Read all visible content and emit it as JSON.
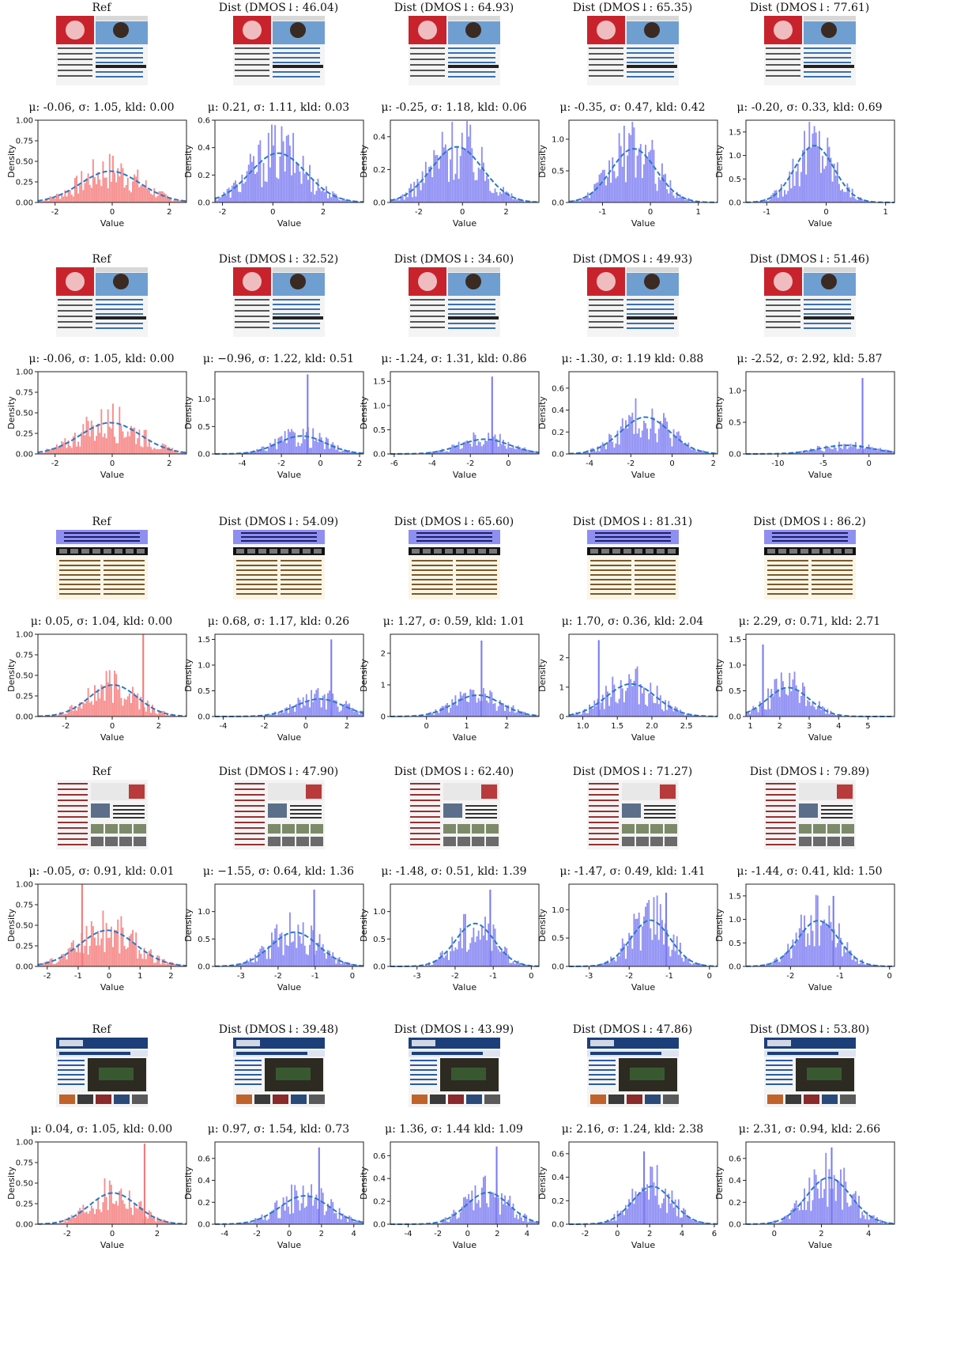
{
  "meta": {
    "figure": "webpage quality distribution grid",
    "thumbnail_variants": [
      "news",
      "news",
      "symposium",
      "article",
      "nbcnews"
    ]
  },
  "palette": {
    "ref_hist": "#f47a7a",
    "dist_hist": "#7b7bf2",
    "fit_line": "#2a78c4",
    "axis": "#222222"
  },
  "chart_data": [
    {
      "row": 0,
      "col": 0,
      "type": "bar",
      "header": "Ref",
      "stats": "μ: -0.06,  σ: 1.05,  kld: 0.00",
      "xlabel": "Value",
      "ylabel": "Density",
      "xlim": [
        -2.6,
        2.6
      ],
      "ylim": [
        0,
        1.0
      ],
      "xticks": [
        -2,
        0,
        2
      ],
      "yticks": [
        0,
        0.25,
        0.5,
        0.75,
        1.0
      ],
      "mu": -0.06,
      "sigma": 1.05,
      "kind": "ref",
      "spike": null
    },
    {
      "row": 0,
      "col": 1,
      "type": "bar",
      "header": "Dist (DMOS↓: 46.04)",
      "stats": "μ: 0.21,  σ: 1.11,  kld: 0.03",
      "xlabel": "Value",
      "ylabel": "Density",
      "xlim": [
        -2.3,
        3.6
      ],
      "ylim": [
        0,
        0.6
      ],
      "xticks": [
        -2,
        0,
        2
      ],
      "yticks": [
        0,
        0.2,
        0.4,
        0.6
      ],
      "mu": 0.21,
      "sigma": 1.11,
      "kind": "dist",
      "spike": null
    },
    {
      "row": 0,
      "col": 2,
      "type": "bar",
      "header": "Dist (DMOS↓: 64.93)",
      "stats": "μ: -0.25,  σ: 1.18,  kld: 0.06",
      "xlabel": "Value",
      "ylabel": "Density",
      "xlim": [
        -3.3,
        3.5
      ],
      "ylim": [
        0,
        0.5
      ],
      "xticks": [
        -2,
        0,
        2
      ],
      "yticks": [
        0,
        0.2,
        0.4
      ],
      "mu": -0.25,
      "sigma": 1.18,
      "kind": "dist",
      "spike": null
    },
    {
      "row": 0,
      "col": 3,
      "type": "bar",
      "header": "Dist (DMOS↓: 65.35)",
      "stats": "μ: -0.35,  σ: 0.47,  kld: 0.42",
      "xlabel": "Value",
      "ylabel": "Density",
      "xlim": [
        -1.7,
        1.4
      ],
      "ylim": [
        0,
        1.3
      ],
      "xticks": [
        -1,
        0,
        1
      ],
      "yticks": [
        0,
        0.5,
        1.0
      ],
      "mu": -0.35,
      "sigma": 0.47,
      "kind": "dist",
      "spike": null
    },
    {
      "row": 0,
      "col": 4,
      "type": "bar",
      "header": "Dist (DMOS↓: 77.61)",
      "stats": "μ: -0.20,  σ: 0.33,  kld: 0.69",
      "xlabel": "Value",
      "ylabel": "Density",
      "xlim": [
        -1.35,
        1.15
      ],
      "ylim": [
        0,
        1.75
      ],
      "xticks": [
        -1,
        0,
        1
      ],
      "yticks": [
        0,
        0.5,
        1.0,
        1.5
      ],
      "mu": -0.2,
      "sigma": 0.33,
      "kind": "dist",
      "spike": null
    },
    {
      "row": 1,
      "col": 0,
      "type": "bar",
      "header": "Ref",
      "stats": "μ: -0.06,  σ: 1.05,  kld: 0.00",
      "xlabel": "Value",
      "ylabel": "Density",
      "xlim": [
        -2.6,
        2.6
      ],
      "ylim": [
        0,
        1.0
      ],
      "xticks": [
        -2,
        0,
        2
      ],
      "yticks": [
        0,
        0.25,
        0.5,
        0.75,
        1.0
      ],
      "mu": -0.06,
      "sigma": 1.05,
      "kind": "ref",
      "spike": null
    },
    {
      "row": 1,
      "col": 1,
      "type": "bar",
      "header": "Dist (DMOS↓: 32.52)",
      "stats": "μ: −0.96,  σ: 1.22,  kld: 0.51",
      "xlabel": "Value",
      "ylabel": "Density",
      "xlim": [
        -5.4,
        2.2
      ],
      "ylim": [
        0,
        1.5
      ],
      "xticks": [
        -4,
        -2,
        0,
        2
      ],
      "yticks": [
        0,
        0.5,
        1.0
      ],
      "mu": -0.96,
      "sigma": 1.22,
      "kind": "dist",
      "spike": [
        -0.7,
        1.45
      ]
    },
    {
      "row": 1,
      "col": 2,
      "type": "bar",
      "header": "Dist (DMOS↓: 34.60)",
      "stats": "μ: -1.24,  σ: 1.31,  kld: 0.86",
      "xlabel": "Value",
      "ylabel": "Density",
      "xlim": [
        -6.2,
        1.6
      ],
      "ylim": [
        0,
        1.7
      ],
      "xticks": [
        -6,
        -4,
        -2,
        0
      ],
      "yticks": [
        0,
        0.5,
        1.0,
        1.5
      ],
      "mu": -1.24,
      "sigma": 1.31,
      "kind": "dist",
      "spike": [
        -0.9,
        1.6
      ]
    },
    {
      "row": 1,
      "col": 3,
      "type": "bar",
      "header": "Dist (DMOS↓: 49.93)",
      "stats": "μ: -1.30,  σ: 1.19  kld: 0.88",
      "xlabel": "Value",
      "ylabel": "Density",
      "xlim": [
        -5.0,
        2.2
      ],
      "ylim": [
        0,
        0.75
      ],
      "xticks": [
        -4,
        -2,
        0,
        2
      ],
      "yticks": [
        0,
        0.2,
        0.4,
        0.6
      ],
      "mu": -1.3,
      "sigma": 1.19,
      "kind": "dist",
      "spike": null
    },
    {
      "row": 1,
      "col": 4,
      "type": "bar",
      "header": "Dist (DMOS↓: 51.46)",
      "stats": "μ: -2.52,  σ: 2.92,  kld: 5.87",
      "xlabel": "Value",
      "ylabel": "Density",
      "xlim": [
        -13.5,
        2.8
      ],
      "ylim": [
        0,
        1.3
      ],
      "xticks": [
        -10,
        -5,
        0
      ],
      "yticks": [
        0,
        0.5,
        1.0
      ],
      "mu": -2.52,
      "sigma": 2.92,
      "kind": "dist",
      "spike": [
        -0.8,
        1.2
      ]
    },
    {
      "row": 2,
      "col": 0,
      "type": "bar",
      "header": "Ref",
      "stats": "μ: 0.05,  σ: 1.04,  kld: 0.00",
      "xlabel": "Value",
      "ylabel": "Density",
      "xlim": [
        -3.2,
        3.2
      ],
      "ylim": [
        0,
        1.0
      ],
      "xticks": [
        -2,
        0,
        2
      ],
      "yticks": [
        0,
        0.25,
        0.5,
        0.75,
        1.0
      ],
      "mu": 0.05,
      "sigma": 1.04,
      "kind": "ref",
      "spike": [
        1.3,
        1.0
      ]
    },
    {
      "row": 2,
      "col": 1,
      "type": "bar",
      "header": "Dist (DMOS↓: 54.09)",
      "stats": "μ: 0.68,  σ: 1.17,  kld: 0.26",
      "xlabel": "Value",
      "ylabel": "Density",
      "xlim": [
        -4.4,
        2.8
      ],
      "ylim": [
        0,
        1.6
      ],
      "xticks": [
        -4,
        -2,
        0,
        2
      ],
      "yticks": [
        0,
        0.5,
        1.0,
        1.5
      ],
      "mu": 0.68,
      "sigma": 1.17,
      "kind": "dist",
      "spike": [
        1.2,
        1.5
      ]
    },
    {
      "row": 2,
      "col": 2,
      "type": "bar",
      "header": "Dist (DMOS↓: 65.60)",
      "stats": "μ: 1.27,  σ: 0.59,  kld: 1.01",
      "xlabel": "Value",
      "ylabel": "Density",
      "xlim": [
        -0.9,
        2.8
      ],
      "ylim": [
        0,
        2.6
      ],
      "xticks": [
        0,
        1,
        2
      ],
      "yticks": [
        0,
        1,
        2
      ],
      "mu": 1.27,
      "sigma": 0.59,
      "kind": "dist",
      "spike": [
        1.35,
        2.4
      ]
    },
    {
      "row": 2,
      "col": 3,
      "type": "bar",
      "header": "Dist (DMOS↓: 81.31)",
      "stats": "μ: 1.70,  σ: 0.36,  kld: 2.04",
      "xlabel": "Value",
      "ylabel": "Density",
      "xlim": [
        0.8,
        2.95
      ],
      "ylim": [
        0,
        2.8
      ],
      "xticks": [
        1.0,
        1.5,
        2.0,
        2.5
      ],
      "yticks": [
        0,
        1,
        2
      ],
      "mu": 1.7,
      "sigma": 0.36,
      "kind": "dist",
      "spike": [
        1.22,
        2.6
      ]
    },
    {
      "row": 2,
      "col": 4,
      "type": "bar",
      "header": "Dist (DMOS↓: 86.2)",
      "stats": "μ: 2.29,  σ: 0.71,  kld: 2.71",
      "xlabel": "Value",
      "ylabel": "Density",
      "xlim": [
        0.85,
        5.9
      ],
      "ylim": [
        0,
        1.6
      ],
      "xticks": [
        1,
        2,
        3,
        4,
        5
      ],
      "yticks": [
        0,
        0.5,
        1.0,
        1.5
      ],
      "mu": 2.29,
      "sigma": 0.71,
      "kind": "dist",
      "spike": [
        1.4,
        1.4
      ]
    },
    {
      "row": 3,
      "col": 0,
      "type": "bar",
      "header": "Ref",
      "stats": "μ: -0.05,  σ: 0.91,  kld: 0.01",
      "xlabel": "Value",
      "ylabel": "Density",
      "xlim": [
        -2.3,
        2.5
      ],
      "ylim": [
        0,
        1.0
      ],
      "xticks": [
        -2,
        -1,
        0,
        1,
        2
      ],
      "yticks": [
        0,
        0.25,
        0.5,
        0.75,
        1.0
      ],
      "mu": -0.05,
      "sigma": 0.91,
      "kind": "ref",
      "spike": [
        -0.9,
        1.0
      ]
    },
    {
      "row": 3,
      "col": 1,
      "type": "bar",
      "header": "Dist (DMOS↓: 47.90)",
      "stats": "μ: −1.55,  σ: 0.64,  kld: 1.36",
      "xlabel": "Value",
      "ylabel": "Density",
      "xlim": [
        -3.7,
        0.3
      ],
      "ylim": [
        0,
        1.5
      ],
      "xticks": [
        -3,
        -2,
        -1,
        0
      ],
      "yticks": [
        0,
        0.5,
        1.0
      ],
      "mu": -1.55,
      "sigma": 0.64,
      "kind": "dist",
      "spike": [
        -1.05,
        1.4
      ]
    },
    {
      "row": 3,
      "col": 2,
      "type": "bar",
      "header": "Dist (DMOS↓: 62.40)",
      "stats": "μ: -1.48,  σ: 0.51,  kld: 1.39",
      "xlabel": "Value",
      "ylabel": "Density",
      "xlim": [
        -3.7,
        0.2
      ],
      "ylim": [
        0,
        1.5
      ],
      "xticks": [
        -3,
        -2,
        -1,
        0
      ],
      "yticks": [
        0,
        0.5,
        1.0
      ],
      "mu": -1.48,
      "sigma": 0.51,
      "kind": "dist",
      "spike": [
        -1.1,
        1.4
      ]
    },
    {
      "row": 3,
      "col": 3,
      "type": "bar",
      "header": "Dist (DMOS↓: 71.27)",
      "stats": "μ: -1.47,  σ: 0.49,  kld: 1.41",
      "xlabel": "Value",
      "ylabel": "Density",
      "xlim": [
        -3.5,
        0.2
      ],
      "ylim": [
        0,
        1.45
      ],
      "xticks": [
        -3,
        -2,
        -1,
        0
      ],
      "yticks": [
        0,
        0.5,
        1.0
      ],
      "mu": -1.47,
      "sigma": 0.49,
      "kind": "dist",
      "spike": [
        -1.1,
        1.3
      ]
    },
    {
      "row": 3,
      "col": 4,
      "type": "bar",
      "header": "Dist (DMOS↓: 79.89)",
      "stats": "μ: -1.44,  σ: 0.41,  kld: 1.50",
      "xlabel": "Value",
      "ylabel": "Density",
      "xlim": [
        -2.9,
        0.1
      ],
      "ylim": [
        0,
        1.75
      ],
      "xticks": [
        -2,
        -1,
        0
      ],
      "yticks": [
        0,
        0.5,
        1.0,
        1.5
      ],
      "mu": -1.44,
      "sigma": 0.41,
      "kind": "dist",
      "spike": [
        -1.15,
        1.5
      ]
    },
    {
      "row": 4,
      "col": 0,
      "type": "bar",
      "header": "Ref",
      "stats": "μ: 0.04,  σ: 1.05,  kld: 0.00",
      "xlabel": "Value",
      "ylabel": "Density",
      "xlim": [
        -3.3,
        3.3
      ],
      "ylim": [
        0,
        1.0
      ],
      "xticks": [
        -2,
        0,
        2
      ],
      "yticks": [
        0,
        0.25,
        0.5,
        0.75,
        1.0
      ],
      "mu": 0.04,
      "sigma": 1.05,
      "kind": "ref",
      "spike": [
        1.4,
        0.98
      ]
    },
    {
      "row": 4,
      "col": 1,
      "type": "bar",
      "header": "Dist (DMOS↓: 39.48)",
      "stats": "μ: 0.97,  σ: 1.54,  kld: 0.73",
      "xlabel": "Value",
      "ylabel": "Density",
      "xlim": [
        -4.6,
        4.6
      ],
      "ylim": [
        0,
        0.75
      ],
      "xticks": [
        -4,
        -2,
        0,
        2,
        4
      ],
      "yticks": [
        0,
        0.2,
        0.4,
        0.6
      ],
      "mu": 0.97,
      "sigma": 1.54,
      "kind": "dist",
      "spike": [
        1.8,
        0.7
      ]
    },
    {
      "row": 4,
      "col": 2,
      "type": "bar",
      "header": "Dist (DMOS↓: 43.99)",
      "stats": "μ: 1.36,  σ: 1.44  kld: 1.09",
      "xlabel": "Value",
      "ylabel": "Density",
      "xlim": [
        -5.2,
        4.8
      ],
      "ylim": [
        0,
        0.72
      ],
      "xticks": [
        -4,
        -2,
        0,
        2,
        4
      ],
      "yticks": [
        0,
        0.2,
        0.4,
        0.6
      ],
      "mu": 1.36,
      "sigma": 1.44,
      "kind": "dist",
      "spike": [
        1.9,
        0.68
      ]
    },
    {
      "row": 4,
      "col": 3,
      "type": "bar",
      "header": "Dist (DMOS↓: 47.86)",
      "stats": "μ: 2.16,  σ: 1.24,  kld: 2.38",
      "xlabel": "Value",
      "ylabel": "Density",
      "xlim": [
        -3.0,
        6.2
      ],
      "ylim": [
        0,
        0.7
      ],
      "xticks": [
        -2,
        0,
        2,
        4,
        6
      ],
      "yticks": [
        0,
        0.2,
        0.4,
        0.6
      ],
      "mu": 2.16,
      "sigma": 1.24,
      "kind": "dist",
      "spike": [
        1.6,
        0.62
      ]
    },
    {
      "row": 4,
      "col": 4,
      "type": "bar",
      "header": "Dist (DMOS↓: 53.80)",
      "stats": "μ: 2.31,  σ: 0.94,  kld: 2.66",
      "xlabel": "Value",
      "ylabel": "Density",
      "xlim": [
        -1.2,
        5.1
      ],
      "ylim": [
        0,
        0.75
      ],
      "xticks": [
        0,
        2,
        4
      ],
      "yticks": [
        0,
        0.2,
        0.4,
        0.6
      ],
      "mu": 2.31,
      "sigma": 0.94,
      "kind": "dist",
      "spike": [
        2.4,
        0.7
      ]
    }
  ]
}
